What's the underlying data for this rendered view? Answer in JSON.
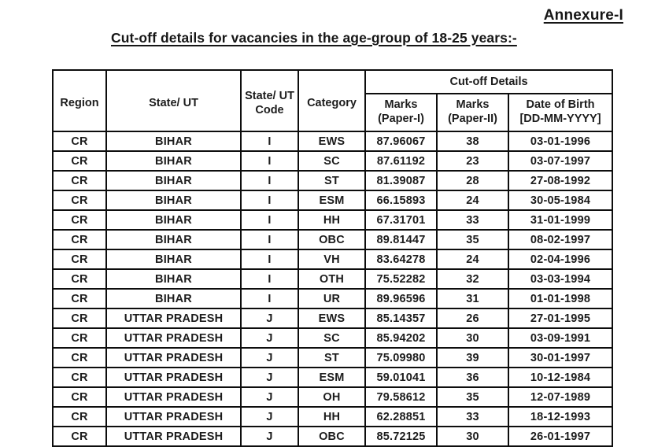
{
  "document": {
    "annexure_label": "Annexure-I",
    "title": "Cut-off details for vacancies in the age-group of 18-25 years:-"
  },
  "table": {
    "headers": {
      "region": "Region",
      "state": "State/ UT",
      "state_code": "State/ UT\nCode",
      "category": "Category",
      "cutoff_details": "Cut-off Details",
      "marks_paper1": "Marks\n(Paper-I)",
      "marks_paper2": "Marks\n(Paper-II)",
      "date_of_birth": "Date of Birth\n[DD-MM-YYYY]"
    },
    "column_keys": [
      "region",
      "state",
      "state-code",
      "category",
      "marks-paper1",
      "marks-paper2",
      "date-of-birth"
    ],
    "rows": [
      [
        "CR",
        "BIHAR",
        "I",
        "EWS",
        "87.96067",
        "38",
        "03-01-1996"
      ],
      [
        "CR",
        "BIHAR",
        "I",
        "SC",
        "87.61192",
        "23",
        "03-07-1997"
      ],
      [
        "CR",
        "BIHAR",
        "I",
        "ST",
        "81.39087",
        "28",
        "27-08-1992"
      ],
      [
        "CR",
        "BIHAR",
        "I",
        "ESM",
        "66.15893",
        "24",
        "30-05-1984"
      ],
      [
        "CR",
        "BIHAR",
        "I",
        "HH",
        "67.31701",
        "33",
        "31-01-1999"
      ],
      [
        "CR",
        "BIHAR",
        "I",
        "OBC",
        "89.81447",
        "35",
        "08-02-1997"
      ],
      [
        "CR",
        "BIHAR",
        "I",
        "VH",
        "83.64278",
        "24",
        "02-04-1996"
      ],
      [
        "CR",
        "BIHAR",
        "I",
        "OTH",
        "75.52282",
        "32",
        "03-03-1994"
      ],
      [
        "CR",
        "BIHAR",
        "I",
        "UR",
        "89.96596",
        "31",
        "01-01-1998"
      ],
      [
        "CR",
        "UTTAR PRADESH",
        "J",
        "EWS",
        "85.14357",
        "26",
        "27-01-1995"
      ],
      [
        "CR",
        "UTTAR PRADESH",
        "J",
        "SC",
        "85.94202",
        "30",
        "03-09-1991"
      ],
      [
        "CR",
        "UTTAR PRADESH",
        "J",
        "ST",
        "75.09980",
        "39",
        "30-01-1997"
      ],
      [
        "CR",
        "UTTAR PRADESH",
        "J",
        "ESM",
        "59.01041",
        "36",
        "10-12-1984"
      ],
      [
        "CR",
        "UTTAR PRADESH",
        "J",
        "OH",
        "79.58612",
        "35",
        "12-07-1989"
      ],
      [
        "CR",
        "UTTAR PRADESH",
        "J",
        "HH",
        "62.28851",
        "33",
        "18-12-1993"
      ],
      [
        "CR",
        "UTTAR PRADESH",
        "J",
        "OBC",
        "85.72125",
        "30",
        "26-01-1997"
      ]
    ]
  },
  "colors": {
    "text": "#1c1c1c",
    "border": "#0d0d0d",
    "background": "#ffffff"
  }
}
